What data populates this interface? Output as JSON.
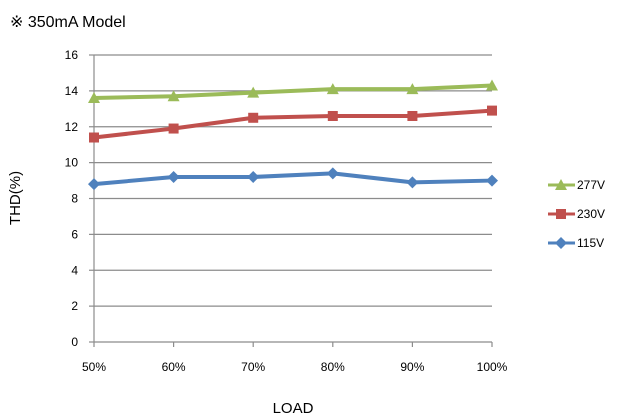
{
  "chart_data": {
    "type": "line",
    "title": "※ 350mA Model",
    "xlabel": "LOAD",
    "ylabel": "THD(%)",
    "categories": [
      "50%",
      "60%",
      "70%",
      "80%",
      "90%",
      "100%"
    ],
    "ylim": [
      0,
      16
    ],
    "yticks": [
      0,
      2,
      4,
      6,
      8,
      10,
      12,
      14,
      16
    ],
    "grid": true,
    "legend_position": "right",
    "series": [
      {
        "name": "277V",
        "color": "#9BBB59",
        "marker": "triangle",
        "values": [
          13.6,
          13.7,
          13.9,
          14.1,
          14.1,
          14.3
        ]
      },
      {
        "name": "230V",
        "color": "#C0504D",
        "marker": "square",
        "values": [
          11.4,
          11.9,
          12.5,
          12.6,
          12.6,
          12.9
        ]
      },
      {
        "name": "115V",
        "color": "#4F81BD",
        "marker": "diamond",
        "values": [
          8.8,
          9.2,
          9.2,
          9.4,
          8.9,
          9.0
        ]
      }
    ]
  }
}
